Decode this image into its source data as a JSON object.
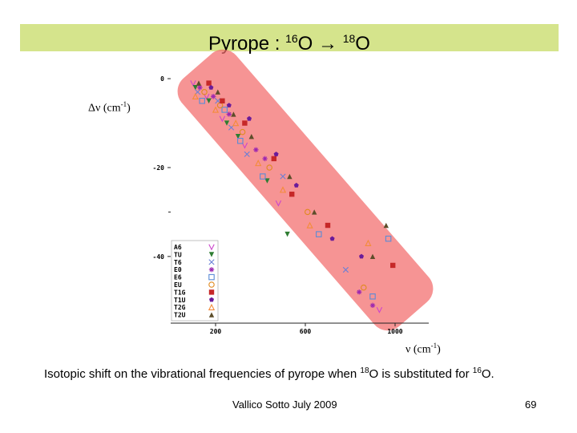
{
  "title": {
    "prefix": "Pyrope : ",
    "iso1": "16",
    "o1": "O",
    "arrow": " → ",
    "iso2": "18",
    "o2": "O"
  },
  "colors": {
    "title_band": "#d5e48c",
    "highlight": "#f26b6b"
  },
  "axis_labels": {
    "y_main": "Δν (cm",
    "y_sup": "-1",
    "y_close": ")",
    "x_main": "ν (cm",
    "x_sup": "-1",
    "x_close": ")"
  },
  "caption": {
    "a": "Isotopic shift  on the vibrational frequencies  of pyrope when ",
    "s1": "18",
    "b": "O is substituted for ",
    "s2": "16",
    "c": "O."
  },
  "footer": {
    "text": "Vallico Sotto  July 2009",
    "page": "69"
  },
  "chart_data": {
    "type": "scatter",
    "xlim": [
      0,
      1150
    ],
    "ylim": [
      -55,
      2
    ],
    "x_ticks": [
      {
        "value": 200,
        "label": "200"
      },
      {
        "value": 600,
        "label": "600"
      },
      {
        "value": 1000,
        "label": "1000"
      }
    ],
    "y_ticks": [
      {
        "value": 0,
        "label": "0"
      },
      {
        "value": -20,
        "label": "-20"
      },
      {
        "value": -40,
        "label": "-40"
      }
    ],
    "grid": false,
    "legend_position": "bottom-left",
    "series": [
      {
        "name": "A6",
        "marker": "v",
        "color": "#cc44cc",
        "points": [
          [
            100,
            -1
          ],
          [
            160,
            -4
          ],
          [
            230,
            -9
          ],
          [
            330,
            -15
          ],
          [
            480,
            -28
          ],
          [
            930,
            -52
          ]
        ]
      },
      {
        "name": "TU",
        "marker": "triangle-down",
        "color": "#2e7d32",
        "points": [
          [
            110,
            -2
          ],
          [
            170,
            -5
          ],
          [
            250,
            -10
          ],
          [
            300,
            -13
          ],
          [
            430,
            -23
          ],
          [
            520,
            -35
          ]
        ]
      },
      {
        "name": "T6",
        "marker": "x",
        "color": "#6a7fd6",
        "points": [
          [
            120,
            -3
          ],
          [
            210,
            -5
          ],
          [
            270,
            -11
          ],
          [
            340,
            -17
          ],
          [
            500,
            -22
          ],
          [
            780,
            -43
          ]
        ]
      },
      {
        "name": "E0",
        "marker": "asterisk",
        "color": "#9c27b0",
        "points": [
          [
            130,
            -2
          ],
          [
            190,
            -4
          ],
          [
            260,
            -8
          ],
          [
            380,
            -16
          ],
          [
            420,
            -18
          ],
          [
            840,
            -48
          ],
          [
            900,
            -51
          ]
        ]
      },
      {
        "name": "E6",
        "marker": "square-open",
        "color": "#5b8bd6",
        "points": [
          [
            140,
            -5
          ],
          [
            240,
            -7
          ],
          [
            310,
            -14
          ],
          [
            410,
            -22
          ],
          [
            660,
            -35
          ],
          [
            900,
            -49
          ],
          [
            970,
            -36
          ]
        ]
      },
      {
        "name": "EU",
        "marker": "circle-open",
        "color": "#e08a1e",
        "points": [
          [
            150,
            -3
          ],
          [
            220,
            -6
          ],
          [
            320,
            -12
          ],
          [
            440,
            -20
          ],
          [
            610,
            -30
          ],
          [
            860,
            -47
          ]
        ]
      },
      {
        "name": "T1G",
        "marker": "square",
        "color": "#c62828",
        "points": [
          [
            170,
            -1
          ],
          [
            230,
            -5
          ],
          [
            330,
            -10
          ],
          [
            460,
            -18
          ],
          [
            540,
            -26
          ],
          [
            700,
            -33
          ],
          [
            990,
            -42
          ]
        ]
      },
      {
        "name": "T1U",
        "marker": "pentagon",
        "color": "#6a1b9a",
        "points": [
          [
            180,
            -2
          ],
          [
            260,
            -6
          ],
          [
            350,
            -9
          ],
          [
            470,
            -17
          ],
          [
            560,
            -24
          ],
          [
            720,
            -36
          ],
          [
            850,
            -40
          ]
        ]
      },
      {
        "name": "T2G",
        "marker": "triangle-open",
        "color": "#f48c3a",
        "points": [
          [
            110,
            -4
          ],
          [
            200,
            -7
          ],
          [
            290,
            -10
          ],
          [
            390,
            -19
          ],
          [
            500,
            -25
          ],
          [
            620,
            -33
          ],
          [
            880,
            -37
          ]
        ]
      },
      {
        "name": "T2U",
        "marker": "triangle",
        "color": "#5d4d2a",
        "points": [
          [
            125,
            -1
          ],
          [
            210,
            -3
          ],
          [
            280,
            -8
          ],
          [
            360,
            -13
          ],
          [
            530,
            -22
          ],
          [
            640,
            -30
          ],
          [
            900,
            -40
          ],
          [
            960,
            -33
          ]
        ]
      }
    ]
  }
}
